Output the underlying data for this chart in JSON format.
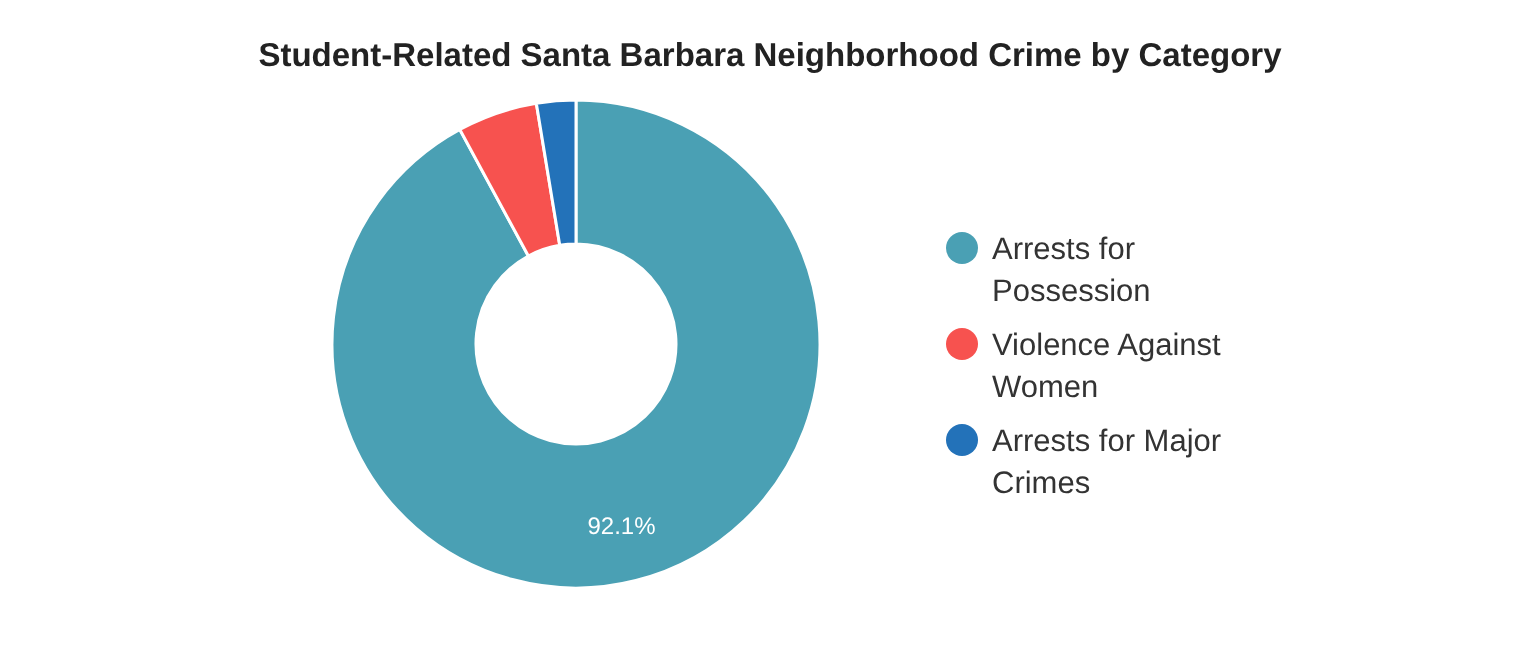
{
  "chart_data": {
    "type": "donut",
    "title": "Student-Related Santa Barbara Neighborhood Crime by Category",
    "categories": [
      "Arrests for Possession",
      "Violence Against Women",
      "Arrests for Major Crimes"
    ],
    "values": [
      92.1,
      5.3,
      2.6
    ],
    "colors": [
      "#4aa0b4",
      "#f7524f",
      "#2372b9"
    ],
    "value_labels": [
      "92.1%",
      null,
      null
    ],
    "legend": "right"
  }
}
